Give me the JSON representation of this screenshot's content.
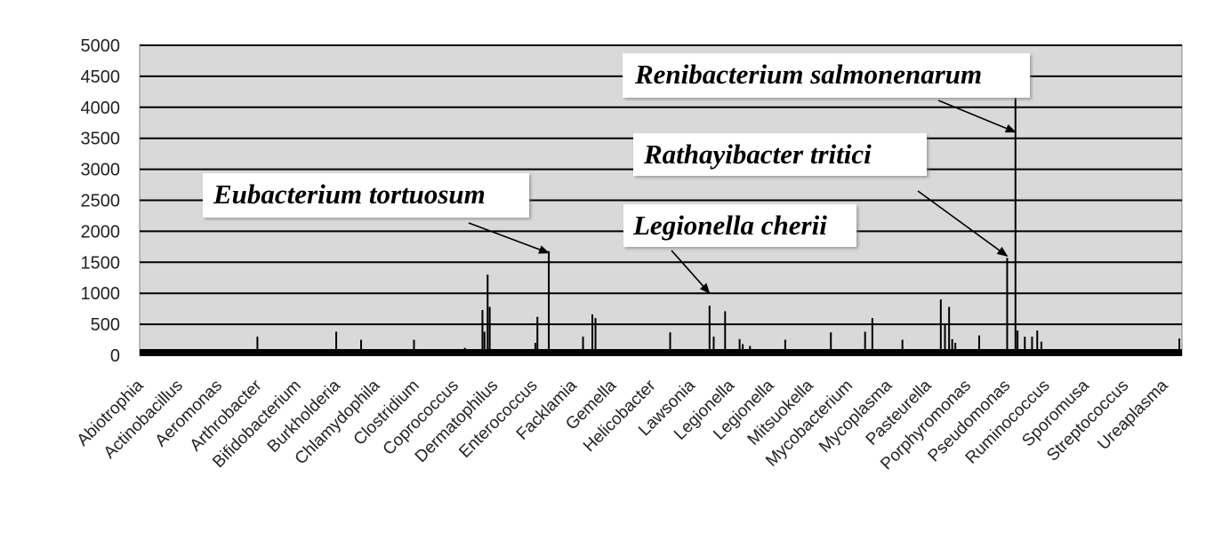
{
  "chart_data": {
    "type": "bar",
    "title": "",
    "xlabel": "",
    "ylabel": "",
    "ylim": [
      0,
      5000
    ],
    "yticks": [
      0,
      500,
      1000,
      1500,
      2000,
      2500,
      3000,
      3500,
      4000,
      4500,
      5000
    ],
    "grid": true,
    "plot_background": "#d9d9d9",
    "bar_color": "#000000",
    "baseline": 100,
    "index_range": [
      0,
      1000
    ],
    "categories": [
      {
        "label": "Abiotrophia",
        "index": 0
      },
      {
        "label": "Actinobacillus",
        "index": 38
      },
      {
        "label": "Aeromonas",
        "index": 76
      },
      {
        "label": "Arthrobacter",
        "index": 114
      },
      {
        "label": "Bifidobacterium",
        "index": 152
      },
      {
        "label": "Burkholderia",
        "index": 190
      },
      {
        "label": "Chlamydophila",
        "index": 228
      },
      {
        "label": "Clostridium",
        "index": 266
      },
      {
        "label": "Coprococcus",
        "index": 304
      },
      {
        "label": "Dermatophilus",
        "index": 342
      },
      {
        "label": "Enterococcus",
        "index": 380
      },
      {
        "label": "Facklamia",
        "index": 418
      },
      {
        "label": "Gemella",
        "index": 456
      },
      {
        "label": "Helicobacter",
        "index": 494
      },
      {
        "label": "Lawsonia",
        "index": 532
      },
      {
        "label": "Legionella",
        "index": 570
      },
      {
        "label": "Legionella",
        "index": 608
      },
      {
        "label": "Mitsuokella",
        "index": 646
      },
      {
        "label": "Mycobacterium",
        "index": 684
      },
      {
        "label": "Mycoplasma",
        "index": 722
      },
      {
        "label": "Pasteurella",
        "index": 760
      },
      {
        "label": "Porphyromonas",
        "index": 798
      },
      {
        "label": "Pseudomonas",
        "index": 836
      },
      {
        "label": "Ruminococcus",
        "index": 874
      },
      {
        "label": "Sporomusa",
        "index": 912
      },
      {
        "label": "Streptococcus",
        "index": 950
      },
      {
        "label": "Ureaplasma",
        "index": 988
      }
    ],
    "spikes": [
      {
        "index": 111,
        "value": 300
      },
      {
        "index": 187,
        "value": 380
      },
      {
        "index": 211,
        "value": 250
      },
      {
        "index": 262,
        "value": 250
      },
      {
        "index": 311,
        "value": 120
      },
      {
        "index": 328,
        "value": 730
      },
      {
        "index": 330,
        "value": 380
      },
      {
        "index": 333,
        "value": 1300
      },
      {
        "index": 335,
        "value": 780
      },
      {
        "index": 379,
        "value": 200
      },
      {
        "index": 381,
        "value": 620
      },
      {
        "index": 392,
        "value": 1680
      },
      {
        "index": 425,
        "value": 300
      },
      {
        "index": 434,
        "value": 660
      },
      {
        "index": 437,
        "value": 600
      },
      {
        "index": 509,
        "value": 370
      },
      {
        "index": 547,
        "value": 800
      },
      {
        "index": 551,
        "value": 300
      },
      {
        "index": 562,
        "value": 710
      },
      {
        "index": 576,
        "value": 260
      },
      {
        "index": 579,
        "value": 180
      },
      {
        "index": 586,
        "value": 150
      },
      {
        "index": 620,
        "value": 250
      },
      {
        "index": 664,
        "value": 370
      },
      {
        "index": 697,
        "value": 380
      },
      {
        "index": 704,
        "value": 600
      },
      {
        "index": 733,
        "value": 250
      },
      {
        "index": 770,
        "value": 900
      },
      {
        "index": 774,
        "value": 500
      },
      {
        "index": 778,
        "value": 780
      },
      {
        "index": 781,
        "value": 260
      },
      {
        "index": 784,
        "value": 200
      },
      {
        "index": 807,
        "value": 320
      },
      {
        "index": 834,
        "value": 1570
      },
      {
        "index": 842,
        "value": 4150
      },
      {
        "index": 844,
        "value": 400
      },
      {
        "index": 851,
        "value": 300
      },
      {
        "index": 858,
        "value": 300
      },
      {
        "index": 863,
        "value": 400
      },
      {
        "index": 867,
        "value": 220
      },
      {
        "index": 1000,
        "value": 270
      }
    ],
    "annotations": [
      {
        "text": "Renibacterium salmonenarum",
        "index": 842,
        "value": 3600
      },
      {
        "text": "Rathayibacter tritici",
        "index": 834,
        "value": 1600
      },
      {
        "text": "Eubacterium tortuosum",
        "index": 392,
        "value": 1650
      },
      {
        "text": "Legionella cherii",
        "index": 547,
        "value": 1000
      }
    ]
  }
}
